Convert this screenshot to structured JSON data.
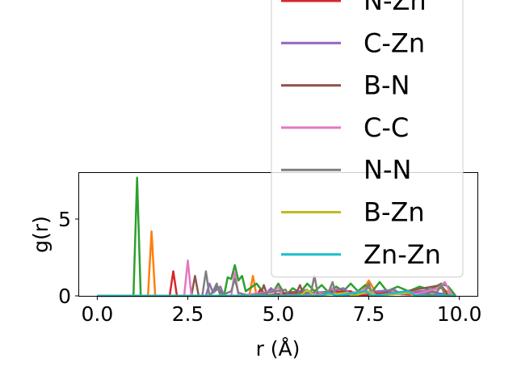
{
  "chart_data": {
    "type": "line",
    "xlabel": "r (Å)",
    "ylabel": "g(r)",
    "xlim": [
      -0.5,
      10.5
    ],
    "ylim": [
      0,
      8
    ],
    "x_ticks": [
      {
        "value": 0,
        "label": "0.0"
      },
      {
        "value": 2.5,
        "label": "2.5"
      },
      {
        "value": 5,
        "label": "5.0"
      },
      {
        "value": 7.5,
        "label": "7.5"
      },
      {
        "value": 10,
        "label": "10.0"
      }
    ],
    "y_ticks": [
      {
        "value": 0,
        "label": "0"
      },
      {
        "value": 5,
        "label": "5"
      }
    ],
    "grid": false,
    "legend_placement": "top-right",
    "series": [
      {
        "name": "",
        "color": "#1f77b4",
        "points": [
          [
            0,
            0
          ],
          [
            4.9,
            0
          ],
          [
            5.0,
            0.1
          ],
          [
            5.4,
            0.2
          ],
          [
            6.0,
            0.2
          ],
          [
            6.6,
            0.3
          ],
          [
            7.2,
            0.2
          ],
          [
            7.8,
            0.3
          ],
          [
            8.4,
            0.2
          ],
          [
            9.0,
            0.3
          ],
          [
            9.9,
            0
          ]
        ]
      },
      {
        "name": "",
        "color": "#ff7f0e",
        "points": [
          [
            0,
            0
          ],
          [
            1.4,
            0
          ],
          [
            1.5,
            4.2
          ],
          [
            1.6,
            0
          ],
          [
            4.2,
            0
          ],
          [
            4.3,
            1.3
          ],
          [
            4.4,
            0
          ],
          [
            6.4,
            0.2
          ],
          [
            6.6,
            0.6
          ],
          [
            6.8,
            0
          ],
          [
            7.3,
            0.2
          ],
          [
            7.5,
            1.0
          ],
          [
            7.7,
            0.2
          ],
          [
            9.0,
            0.3
          ],
          [
            9.5,
            0.5
          ],
          [
            9.9,
            0
          ]
        ]
      },
      {
        "name": "",
        "color": "#2ca02c",
        "points": [
          [
            0,
            0
          ],
          [
            1.0,
            0
          ],
          [
            1.1,
            7.7
          ],
          [
            1.2,
            0
          ],
          [
            3.1,
            0
          ],
          [
            3.3,
            0.6
          ],
          [
            3.5,
            0
          ],
          [
            3.6,
            1.2
          ],
          [
            3.7,
            1.1
          ],
          [
            3.8,
            2.0
          ],
          [
            3.9,
            1.0
          ],
          [
            4.0,
            1.3
          ],
          [
            4.1,
            0.3
          ],
          [
            4.4,
            0.8
          ],
          [
            4.6,
            0.2
          ],
          [
            4.9,
            0.4
          ],
          [
            5.0,
            0.8
          ],
          [
            5.2,
            0
          ],
          [
            5.4,
            0.5
          ],
          [
            5.6,
            0.2
          ],
          [
            5.8,
            0.8
          ],
          [
            6.0,
            0.3
          ],
          [
            6.2,
            0.7
          ],
          [
            6.4,
            0.2
          ],
          [
            6.6,
            0.6
          ],
          [
            6.8,
            0.3
          ],
          [
            7.0,
            0.8
          ],
          [
            7.2,
            0.3
          ],
          [
            7.4,
            0.7
          ],
          [
            7.6,
            0.3
          ],
          [
            7.8,
            0.9
          ],
          [
            8.0,
            0.3
          ],
          [
            8.3,
            0.6
          ],
          [
            8.6,
            0.3
          ],
          [
            8.9,
            0.6
          ],
          [
            9.2,
            0.4
          ],
          [
            9.5,
            0.8
          ],
          [
            9.7,
            0.6
          ],
          [
            9.9,
            0
          ]
        ]
      },
      {
        "name": "N-Zn",
        "color": "#d62728",
        "points": [
          [
            0,
            0
          ],
          [
            2.0,
            0
          ],
          [
            2.1,
            1.6
          ],
          [
            2.2,
            0
          ],
          [
            4.4,
            0
          ],
          [
            4.5,
            0.4
          ],
          [
            4.6,
            0
          ],
          [
            5.6,
            0.3
          ],
          [
            5.8,
            0.1
          ],
          [
            7.0,
            0.3
          ],
          [
            7.2,
            0
          ],
          [
            8.0,
            0.2
          ],
          [
            8.5,
            0.1
          ],
          [
            9.9,
            0
          ]
        ]
      },
      {
        "name": "C-Zn",
        "color": "#9467bd",
        "points": [
          [
            0,
            0
          ],
          [
            3.0,
            0
          ],
          [
            3.1,
            0.8
          ],
          [
            3.2,
            0.2
          ],
          [
            3.4,
            0.6
          ],
          [
            3.5,
            0
          ],
          [
            4.6,
            0
          ],
          [
            4.8,
            0.5
          ],
          [
            5.0,
            0
          ],
          [
            5.8,
            0.4
          ],
          [
            6.0,
            0
          ],
          [
            6.8,
            0.5
          ],
          [
            7.0,
            0.1
          ],
          [
            8.2,
            0.4
          ],
          [
            8.4,
            0.1
          ],
          [
            9.2,
            0.4
          ],
          [
            9.4,
            0.1
          ],
          [
            9.9,
            0
          ]
        ]
      },
      {
        "name": "B-N",
        "color": "#8c564b",
        "points": [
          [
            0,
            0
          ],
          [
            2.6,
            0
          ],
          [
            2.7,
            1.3
          ],
          [
            2.8,
            0
          ],
          [
            4.5,
            0
          ],
          [
            4.6,
            0.7
          ],
          [
            4.7,
            0
          ],
          [
            5.5,
            0.2
          ],
          [
            5.6,
            0.7
          ],
          [
            5.7,
            0
          ],
          [
            6.5,
            0.3
          ],
          [
            6.7,
            0
          ],
          [
            7.6,
            0.3
          ],
          [
            7.8,
            0
          ],
          [
            9.5,
            0.7
          ],
          [
            9.7,
            0
          ],
          [
            9.9,
            0
          ]
        ]
      },
      {
        "name": "C-C",
        "color": "#e377c2",
        "points": [
          [
            0,
            0
          ],
          [
            2.4,
            0
          ],
          [
            2.5,
            2.3
          ],
          [
            2.6,
            0
          ],
          [
            3.7,
            0
          ],
          [
            3.8,
            1.6
          ],
          [
            3.9,
            0
          ],
          [
            4.9,
            0.3
          ],
          [
            5.0,
            0.6
          ],
          [
            5.1,
            0
          ],
          [
            6.3,
            0.2
          ],
          [
            6.5,
            0.5
          ],
          [
            6.6,
            0
          ],
          [
            7.3,
            0.3
          ],
          [
            7.5,
            0.6
          ],
          [
            7.7,
            0
          ],
          [
            8.6,
            0.3
          ],
          [
            8.8,
            0.1
          ],
          [
            9.4,
            0.5
          ],
          [
            9.6,
            0.9
          ],
          [
            9.8,
            0
          ],
          [
            9.9,
            0
          ]
        ]
      },
      {
        "name": "N-N",
        "color": "#7f7f7f",
        "points": [
          [
            0,
            0
          ],
          [
            2.9,
            0
          ],
          [
            3.0,
            1.6
          ],
          [
            3.1,
            0
          ],
          [
            3.2,
            0.3
          ],
          [
            3.3,
            0.8
          ],
          [
            3.4,
            0
          ],
          [
            3.7,
            0.3
          ],
          [
            3.8,
            1.1
          ],
          [
            3.9,
            0.2
          ],
          [
            4.2,
            0
          ],
          [
            5.2,
            0.4
          ],
          [
            5.3,
            0
          ],
          [
            5.9,
            0.2
          ],
          [
            6.0,
            1.3
          ],
          [
            6.1,
            0
          ],
          [
            6.4,
            0.3
          ],
          [
            6.5,
            0.9
          ],
          [
            6.6,
            0
          ],
          [
            7.4,
            0.2
          ],
          [
            7.5,
            0.8
          ],
          [
            7.6,
            0
          ],
          [
            8.6,
            0.2
          ],
          [
            8.8,
            0
          ],
          [
            9.4,
            0.3
          ],
          [
            9.5,
            0.7
          ],
          [
            9.6,
            0
          ],
          [
            9.9,
            0
          ]
        ]
      },
      {
        "name": "B-Zn",
        "color": "#bcbd22",
        "points": [
          [
            0,
            0
          ],
          [
            5.6,
            0
          ],
          [
            5.8,
            0.4
          ],
          [
            6.0,
            0
          ],
          [
            6.9,
            0.2
          ],
          [
            7.1,
            0
          ],
          [
            7.5,
            0.3
          ],
          [
            7.7,
            0
          ],
          [
            8.6,
            0.2
          ],
          [
            8.8,
            0
          ],
          [
            9.9,
            0
          ]
        ]
      },
      {
        "name": "Zn-Zn",
        "color": "#17becf",
        "points": [
          [
            0,
            0
          ],
          [
            6.2,
            0
          ],
          [
            6.4,
            0.2
          ],
          [
            6.6,
            0
          ],
          [
            7.4,
            0.3
          ],
          [
            7.6,
            0
          ],
          [
            8.6,
            0.3
          ],
          [
            8.8,
            0
          ],
          [
            9.9,
            0
          ]
        ]
      }
    ]
  }
}
